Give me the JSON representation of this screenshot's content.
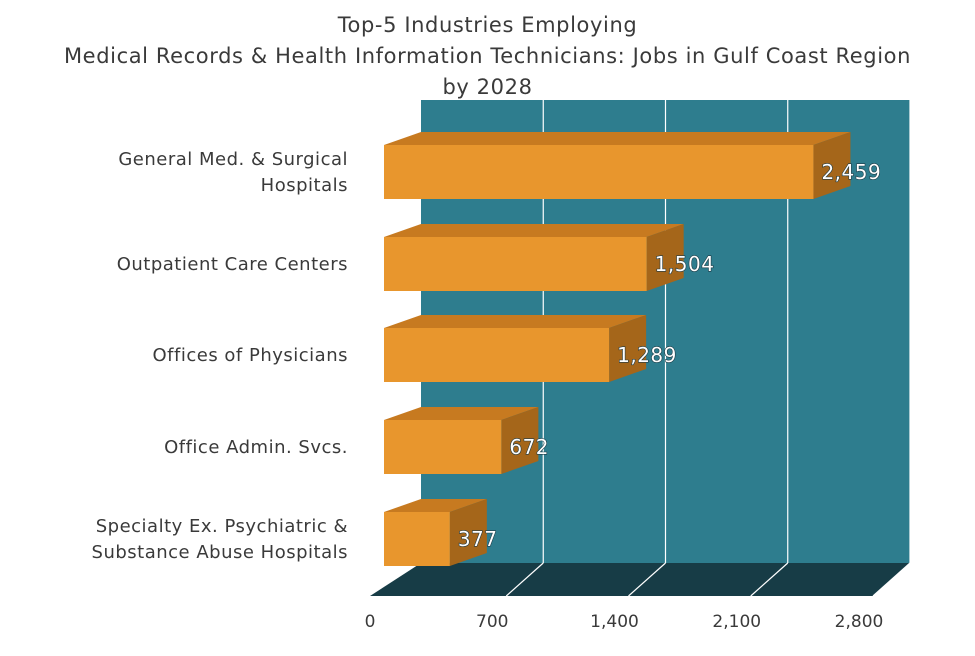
{
  "chart_data": {
    "type": "bar",
    "orientation": "horizontal",
    "title_lines": [
      "Top-5 Industries Employing",
      "Medical Records & Health Information Technicians: Jobs in Gulf Coast Region",
      "by 2028"
    ],
    "categories": [
      [
        "General Med. & Surgical",
        "Hospitals"
      ],
      [
        "Outpatient Care Centers"
      ],
      [
        "Offices of Physicians"
      ],
      [
        "Office Admin. Svcs."
      ],
      [
        "Specialty Ex. Psychiatric &",
        "Substance Abuse Hospitals"
      ]
    ],
    "values": [
      2459,
      1504,
      1289,
      672,
      377
    ],
    "data_labels": [
      "2,459",
      "1,504",
      "1,289",
      "672",
      "377"
    ],
    "xlim": [
      0,
      2800
    ],
    "x_ticks": [
      0,
      700,
      1400,
      2100,
      2800
    ],
    "x_tick_labels": [
      "0",
      "700",
      "1,400",
      "2,100",
      "2,800"
    ],
    "grid": true,
    "colors": {
      "bar_front": "#E8962D",
      "bar_top": "#C77A20",
      "bar_side": "#A5661A",
      "wall": "#2E7D8E",
      "floor": "#173C46",
      "gridline": "#FFFFFF"
    }
  }
}
